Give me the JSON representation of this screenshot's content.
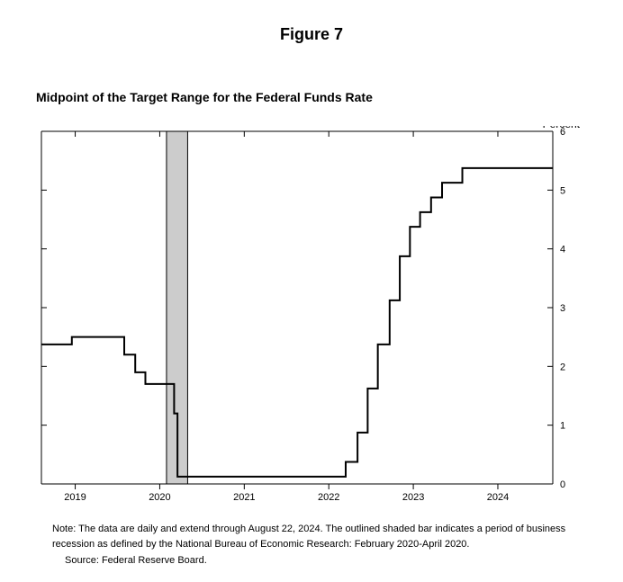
{
  "figure_label": "Figure 7",
  "chart": {
    "type": "step-line",
    "title": "Midpoint of the Target Range for the Federal Funds Rate",
    "y_unit_label": "Percent",
    "x_domain_start": 2018.6,
    "x_domain_end": 2024.65,
    "ylim": [
      0,
      6
    ],
    "ytick_step": 1,
    "xticks": [
      2019,
      2020,
      2021,
      2022,
      2023,
      2024
    ],
    "background_color": "#ffffff",
    "axis_color": "#000000",
    "line_color": "#000000",
    "line_width": 2,
    "recession_band": {
      "start": 2020.08,
      "end": 2020.33,
      "fill": "#cccccc",
      "stroke": "#000000"
    },
    "series": [
      {
        "x": 2018.6,
        "y": 2.375
      },
      {
        "x": 2018.96,
        "y": 2.375
      },
      {
        "x": 2018.96,
        "y": 2.5
      },
      {
        "x": 2019.58,
        "y": 2.5
      },
      {
        "x": 2019.58,
        "y": 2.2
      },
      {
        "x": 2019.71,
        "y": 2.2
      },
      {
        "x": 2019.71,
        "y": 1.9
      },
      {
        "x": 2019.83,
        "y": 1.9
      },
      {
        "x": 2019.83,
        "y": 1.7
      },
      {
        "x": 2020.17,
        "y": 1.7
      },
      {
        "x": 2020.17,
        "y": 1.2
      },
      {
        "x": 2020.21,
        "y": 1.2
      },
      {
        "x": 2020.21,
        "y": 0.125
      },
      {
        "x": 2022.2,
        "y": 0.125
      },
      {
        "x": 2022.2,
        "y": 0.375
      },
      {
        "x": 2022.34,
        "y": 0.375
      },
      {
        "x": 2022.34,
        "y": 0.875
      },
      {
        "x": 2022.46,
        "y": 0.875
      },
      {
        "x": 2022.46,
        "y": 1.625
      },
      {
        "x": 2022.58,
        "y": 1.625
      },
      {
        "x": 2022.58,
        "y": 2.375
      },
      {
        "x": 2022.72,
        "y": 2.375
      },
      {
        "x": 2022.72,
        "y": 3.125
      },
      {
        "x": 2022.84,
        "y": 3.125
      },
      {
        "x": 2022.84,
        "y": 3.875
      },
      {
        "x": 2022.96,
        "y": 3.875
      },
      {
        "x": 2022.96,
        "y": 4.375
      },
      {
        "x": 2023.08,
        "y": 4.375
      },
      {
        "x": 2023.08,
        "y": 4.625
      },
      {
        "x": 2023.21,
        "y": 4.625
      },
      {
        "x": 2023.21,
        "y": 4.875
      },
      {
        "x": 2023.34,
        "y": 4.875
      },
      {
        "x": 2023.34,
        "y": 5.125
      },
      {
        "x": 2023.58,
        "y": 5.125
      },
      {
        "x": 2023.58,
        "y": 5.375
      },
      {
        "x": 2024.65,
        "y": 5.375
      }
    ]
  },
  "note_text": "Note: The data are daily and extend through August 22, 2024. The outlined shaded bar indicates a period of business recession as defined by the National Bureau of Economic Research: February 2020-April 2020.",
  "source_text": "Source: Federal Reserve Board."
}
